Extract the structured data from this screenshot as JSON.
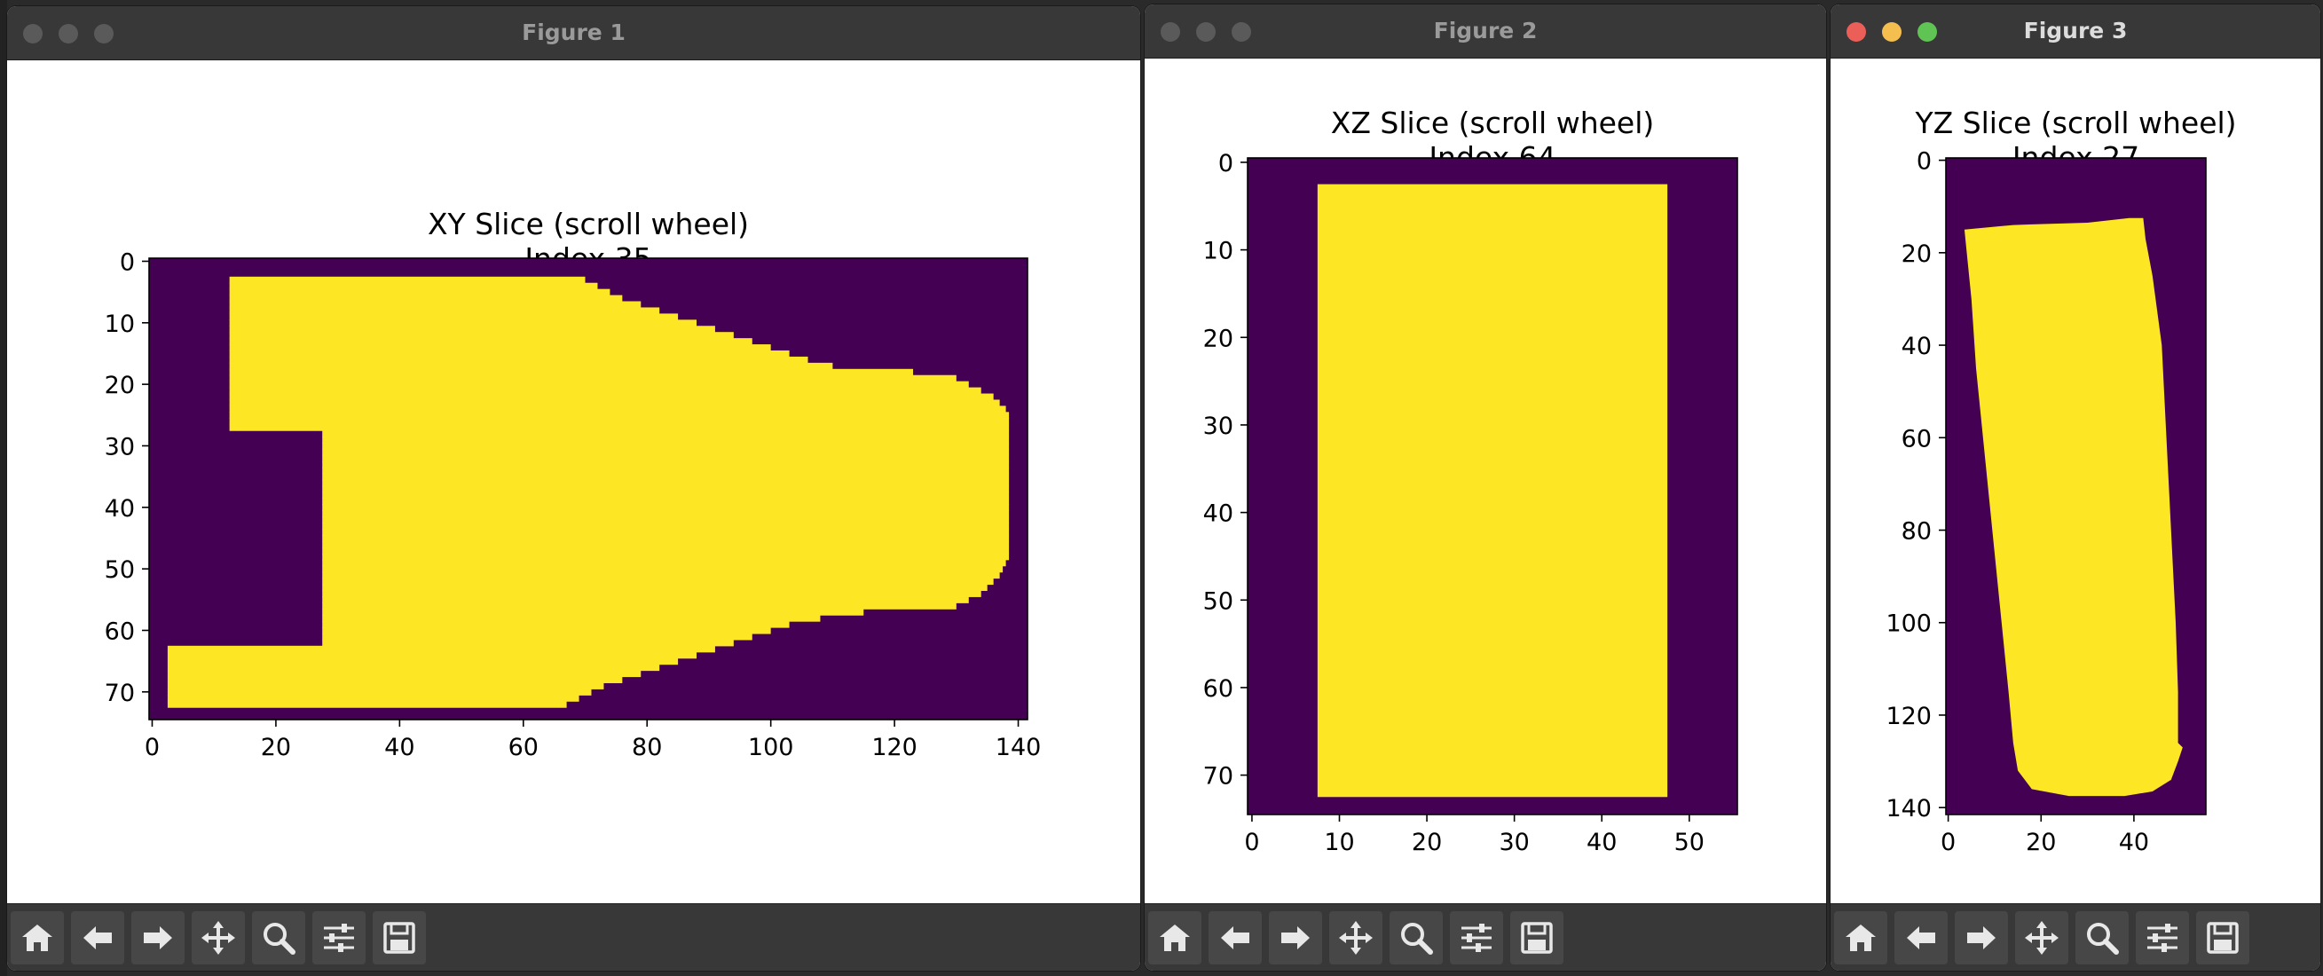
{
  "windows": [
    {
      "title": "Figure 1",
      "active": false,
      "chart_data": {
        "type": "heatmap",
        "title_line1": "XY Slice (scroll wheel)",
        "title_line2": "Index 35",
        "xlim": [
          -0.5,
          141.5
        ],
        "ylim": [
          74.5,
          -0.5
        ],
        "xticks": [
          "0",
          "20",
          "40",
          "60",
          "80",
          "100",
          "120",
          "140"
        ],
        "yticks": [
          "0",
          "10",
          "20",
          "30",
          "40",
          "50",
          "60",
          "70"
        ],
        "xtick_values": [
          0,
          20,
          40,
          60,
          80,
          100,
          120,
          140
        ],
        "ytick_values": [
          0,
          10,
          20,
          30,
          40,
          50,
          60,
          70
        ],
        "colormap": {
          "background": "#440154",
          "foreground": "#fde725"
        },
        "mask_region_rows": [
          [
            3,
            12.5,
            70
          ],
          [
            4,
            12.5,
            72
          ],
          [
            5,
            12.5,
            74
          ],
          [
            6,
            12.5,
            76
          ],
          [
            7,
            12.5,
            79
          ],
          [
            8,
            12.5,
            82
          ],
          [
            9,
            12.5,
            85
          ],
          [
            10,
            12.5,
            88
          ],
          [
            11,
            12.5,
            91
          ],
          [
            12,
            12.5,
            94
          ],
          [
            13,
            12.5,
            97
          ],
          [
            14,
            12.5,
            100
          ],
          [
            15,
            12.5,
            103
          ],
          [
            16,
            12.5,
            106
          ],
          [
            17,
            12.5,
            110
          ],
          [
            18,
            12.5,
            123
          ],
          [
            19,
            12.5,
            130
          ],
          [
            20,
            12.5,
            132
          ],
          [
            21,
            12.5,
            134
          ],
          [
            22,
            12.5,
            136
          ],
          [
            23,
            12.5,
            137
          ],
          [
            24,
            12.5,
            138
          ],
          [
            25,
            12.5,
            138.5
          ],
          [
            26,
            12.5,
            138.5
          ],
          [
            27,
            12.5,
            138.5
          ],
          [
            28,
            27.5,
            138.5
          ],
          [
            29,
            27.5,
            138.5
          ],
          [
            30,
            27.5,
            138.5
          ],
          [
            31,
            27.5,
            138.5
          ],
          [
            32,
            27.5,
            138.5
          ],
          [
            33,
            27.5,
            138.5
          ],
          [
            34,
            27.5,
            138.5
          ],
          [
            35,
            27.5,
            138.5
          ],
          [
            36,
            27.5,
            138.5
          ],
          [
            37,
            27.5,
            138.5
          ],
          [
            38,
            27.5,
            138.5
          ],
          [
            39,
            27.5,
            138.5
          ],
          [
            40,
            27.5,
            138.5
          ],
          [
            41,
            27.5,
            138.5
          ],
          [
            42,
            27.5,
            138.5
          ],
          [
            43,
            27.5,
            138.5
          ],
          [
            44,
            27.5,
            138.5
          ],
          [
            45,
            27.5,
            138.5
          ],
          [
            46,
            27.5,
            138.5
          ],
          [
            47,
            27.5,
            138.5
          ],
          [
            48,
            27.5,
            138.5
          ],
          [
            49,
            27.5,
            138
          ],
          [
            50,
            27.5,
            137.5
          ],
          [
            51,
            27.5,
            137
          ],
          [
            52,
            27.5,
            136
          ],
          [
            53,
            27.5,
            135
          ],
          [
            54,
            27.5,
            134
          ],
          [
            55,
            27.5,
            132
          ],
          [
            56,
            27.5,
            130
          ],
          [
            57,
            27.5,
            115
          ],
          [
            58,
            27.5,
            108
          ],
          [
            59,
            27.5,
            103
          ],
          [
            60,
            27.5,
            100
          ],
          [
            61,
            27.5,
            97
          ],
          [
            62,
            27.5,
            94
          ],
          [
            63,
            2.5,
            91
          ],
          [
            64,
            2.5,
            88
          ],
          [
            65,
            2.5,
            85
          ],
          [
            66,
            2.5,
            82
          ],
          [
            67,
            2.5,
            79
          ],
          [
            68,
            2.5,
            76
          ],
          [
            69,
            2.5,
            73
          ],
          [
            70,
            2.5,
            71
          ],
          [
            71,
            2.5,
            69
          ],
          [
            72,
            2.5,
            67
          ]
        ]
      }
    },
    {
      "title": "Figure 2",
      "active": false,
      "chart_data": {
        "type": "heatmap",
        "title_line1": "XZ Slice (scroll wheel)",
        "title_line2": "Index 64",
        "xlim": [
          -0.5,
          55.5
        ],
        "ylim": [
          74.5,
          -0.5
        ],
        "xticks": [
          "0",
          "10",
          "20",
          "30",
          "40",
          "50"
        ],
        "yticks": [
          "0",
          "10",
          "20",
          "30",
          "40",
          "50",
          "60",
          "70"
        ],
        "xtick_values": [
          0,
          10,
          20,
          30,
          40,
          50
        ],
        "ytick_values": [
          0,
          10,
          20,
          30,
          40,
          50,
          60,
          70
        ],
        "colormap": {
          "background": "#440154",
          "foreground": "#fde725"
        },
        "mask_rect": [
          7.5,
          2.5,
          47.5,
          72.5
        ]
      }
    },
    {
      "title": "Figure 3",
      "active": true,
      "chart_data": {
        "type": "heatmap",
        "title_line1": "YZ Slice (scroll wheel)",
        "title_line2": "Index 27",
        "xlim": [
          -0.5,
          55.5
        ],
        "ylim": [
          141.5,
          -0.5
        ],
        "xticks": [
          "0",
          "20",
          "40"
        ],
        "yticks": [
          "0",
          "20",
          "40",
          "60",
          "80",
          "100",
          "120",
          "140"
        ],
        "xtick_values": [
          0,
          20,
          40
        ],
        "ytick_values": [
          0,
          20,
          40,
          60,
          80,
          100,
          120,
          140
        ],
        "colormap": {
          "background": "#440154",
          "foreground": "#fde725"
        },
        "mask_polygon": [
          [
            3.5,
            15
          ],
          [
            14,
            14
          ],
          [
            30,
            13.5
          ],
          [
            39,
            12.5
          ],
          [
            42,
            12.5
          ],
          [
            42.5,
            17
          ],
          [
            44,
            25
          ],
          [
            46,
            40
          ],
          [
            47,
            60
          ],
          [
            48,
            80
          ],
          [
            49,
            100
          ],
          [
            49.5,
            115
          ],
          [
            49.5,
            126
          ],
          [
            50.5,
            127
          ],
          [
            49.5,
            130
          ],
          [
            48,
            134
          ],
          [
            44,
            136.5
          ],
          [
            38,
            137.5
          ],
          [
            26,
            137.5
          ],
          [
            18,
            136
          ],
          [
            15,
            132
          ],
          [
            14,
            126
          ],
          [
            13,
            115
          ],
          [
            11.5,
            100
          ],
          [
            10,
            85
          ],
          [
            8,
            65
          ],
          [
            6,
            45
          ],
          [
            5,
            30
          ],
          [
            4,
            20
          ]
        ]
      }
    }
  ],
  "toolbar": {
    "buttons": [
      "home-icon",
      "back-arrow-icon",
      "forward-arrow-icon",
      "pan-icon",
      "zoom-icon",
      "configure-subplots-icon",
      "save-icon"
    ]
  }
}
